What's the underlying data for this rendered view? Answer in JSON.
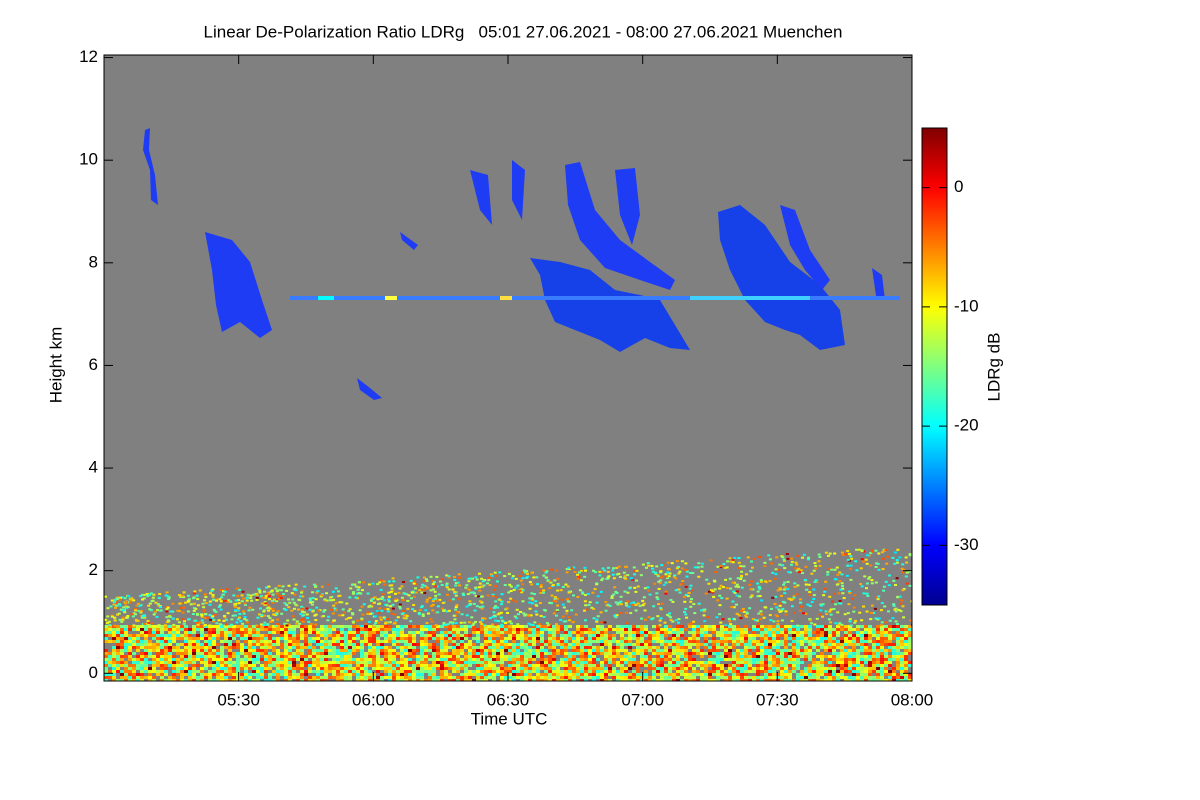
{
  "chart_data": {
    "type": "heatmap",
    "title": "Linear De-Polarization Ratio LDRg   05:01 27.06.2021 - 08:00 27.06.2021 Muenchen",
    "x_label": "Time UTC",
    "y_label": "Height km",
    "xlim": [
      5.0,
      8.0
    ],
    "xticks": [
      {
        "value": 5.5,
        "label": "05:30"
      },
      {
        "value": 6.0,
        "label": "06:00"
      },
      {
        "value": 6.5,
        "label": "06:30"
      },
      {
        "value": 7.0,
        "label": "07:00"
      },
      {
        "value": 7.5,
        "label": "07:30"
      },
      {
        "value": 8.0,
        "label": "08:00"
      }
    ],
    "ylim": [
      -0.15,
      12.05
    ],
    "yticks": [
      0,
      2,
      4,
      6,
      8,
      10,
      12
    ],
    "colorbar": {
      "label": "LDRg dB",
      "lim": [
        -35,
        5
      ],
      "ticks": [
        0,
        -10,
        -20,
        -30
      ]
    }
  }
}
